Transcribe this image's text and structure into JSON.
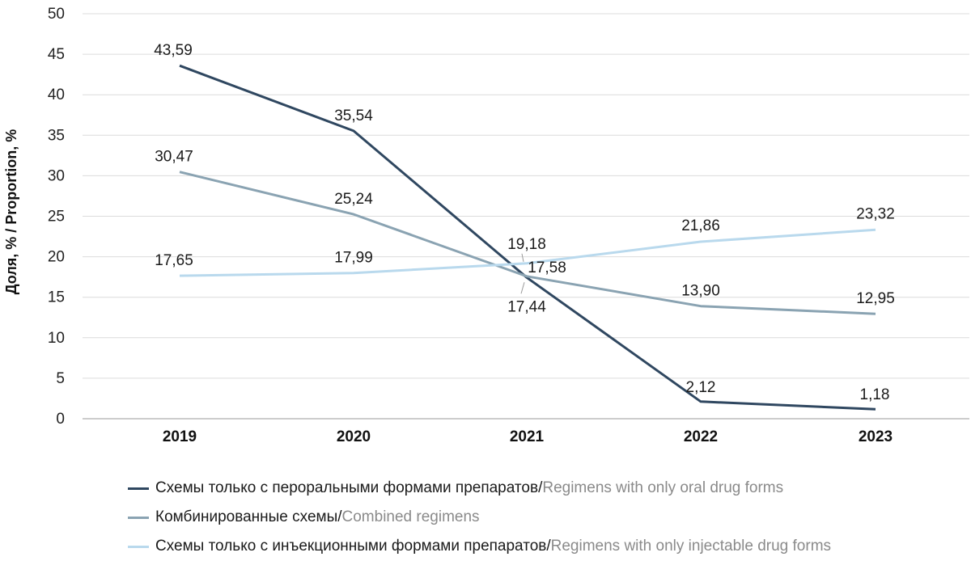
{
  "chart_data": {
    "type": "line",
    "categories": [
      "2019",
      "2020",
      "2021",
      "2022",
      "2023"
    ],
    "ylabel": "Доля, % / Proportion, %",
    "ylim": [
      0,
      50
    ],
    "yticks": [
      "0",
      "5",
      "10",
      "15",
      "20",
      "25",
      "30",
      "35",
      "40",
      "45",
      "50"
    ],
    "grid": "horizontal",
    "legend_position": "bottom",
    "series": [
      {
        "key": "oral",
        "name_ru": "Схемы только с пероральными формами препаратов",
        "separator": " / ",
        "name_en": "Regimens with only oral drug forms",
        "color": "#2f4760",
        "values": [
          43.59,
          35.54,
          17.44,
          2.12,
          1.18
        ],
        "labels": [
          "43,59",
          "35,54",
          "17,44",
          "2,12",
          "1,18"
        ]
      },
      {
        "key": "combined",
        "name_ru": "Комбинированные схемы",
        "separator": " / ",
        "name_en": "Combined regimens",
        "color": "#8aa3b2",
        "values": [
          30.47,
          25.24,
          17.58,
          13.9,
          12.95
        ],
        "labels": [
          "30,47",
          "25,24",
          "17,58",
          "13,90",
          "12,95"
        ]
      },
      {
        "key": "injectable",
        "name_ru": "Схемы только с инъекционными формами препаратов",
        "separator": " / ",
        "name_en": "Regimens with only injectable drug forms",
        "color": "#b9d9ed",
        "values": [
          17.65,
          17.99,
          19.18,
          21.86,
          23.32
        ],
        "labels": [
          "17,65",
          "17,99",
          "19,18",
          "21,86",
          "23,32"
        ]
      }
    ]
  }
}
